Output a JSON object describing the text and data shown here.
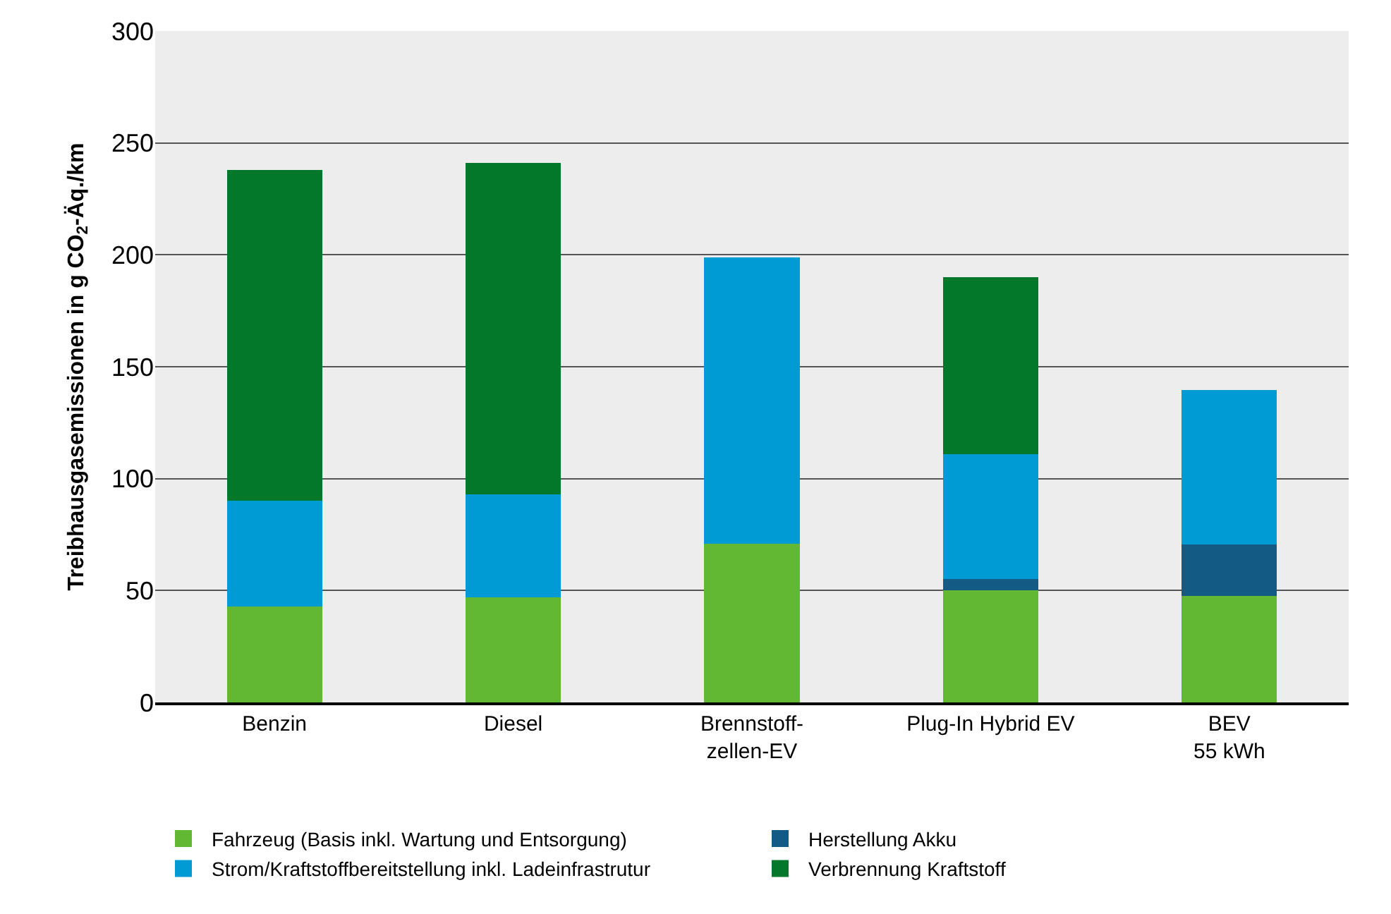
{
  "chart_data": {
    "type": "bar",
    "stacked": true,
    "ylabel": "Treibhausgasemissionen in g CO$_{2}$-Äq./km",
    "categories": [
      "Benzin",
      "Diesel",
      "Brennstoff-\nzellen-EV",
      "Plug-In Hybrid EV",
      "BEV\n55 kWh"
    ],
    "series": [
      {
        "name": "Fahrzeug (Basis inkl. Wartung und Entsorgung)",
        "color": "#62b832",
        "values": [
          43,
          47,
          71,
          50,
          47.5
        ]
      },
      {
        "name": "Herstellung Akku",
        "color": "#135a84",
        "values": [
          null,
          null,
          null,
          5,
          23
        ]
      },
      {
        "name": "Strom/Kraftstoffbereitstellung inkl. Ladeinfrastrutur",
        "color": "#009bd5",
        "values": [
          47,
          46,
          128,
          56,
          69
        ]
      },
      {
        "name": "Verbrennung Kraftstoff",
        "color": "#04782a",
        "values": [
          148,
          148,
          null,
          79,
          null
        ]
      }
    ],
    "ylim": [
      0,
      300
    ],
    "yticks": [
      0,
      50,
      100,
      150,
      200,
      250,
      300
    ],
    "grid": "y",
    "legend": "bottom"
  }
}
